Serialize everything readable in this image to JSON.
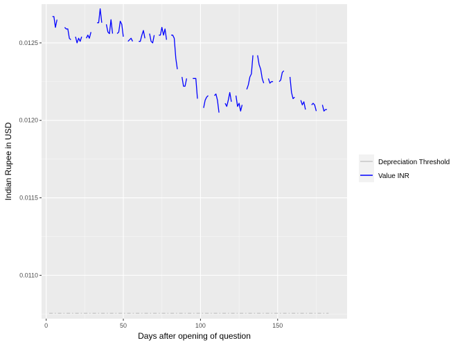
{
  "chart_data": {
    "type": "line",
    "title": "",
    "xlabel": "Days after opening of question",
    "ylabel": "Indian Rupee in USD",
    "xlim": [
      -3,
      195
    ],
    "ylim": [
      0.01072,
      0.01275
    ],
    "x_ticks": [
      0,
      50,
      100,
      150
    ],
    "x_tick_labels": [
      "0",
      "50",
      "100",
      "150"
    ],
    "y_ticks": [
      0.011,
      0.0115,
      0.012,
      0.0125
    ],
    "y_tick_labels": [
      "0.0110",
      "0.0115",
      "0.0120",
      "0.0125"
    ],
    "grid": true,
    "legend_position": "right",
    "series": [
      {
        "name": "Depreciation Threshold",
        "color": "#bebebe",
        "style": "dashed",
        "x": [
          2,
          183
        ],
        "y": [
          0.010755,
          0.010755
        ]
      },
      {
        "name": "Value INR",
        "color": "#0000ff",
        "style": "solid",
        "segments": [
          {
            "x": [
              4,
              5,
              6,
              7
            ],
            "y": [
              0.01267,
              0.01267,
              0.0126,
              0.01265
            ]
          },
          {
            "x": [
              12,
              13,
              14,
              15,
              16
            ],
            "y": [
              0.0126,
              0.01259,
              0.01259,
              0.01253,
              0.01252
            ]
          },
          {
            "x": [
              19,
              20,
              21,
              22,
              23
            ],
            "y": [
              0.01254,
              0.0125,
              0.01253,
              0.01251,
              0.01254
            ]
          },
          {
            "x": [
              26,
              27,
              28,
              29
            ],
            "y": [
              0.01253,
              0.01255,
              0.01253,
              0.01257
            ]
          },
          {
            "x": [
              33,
              34,
              35,
              36
            ],
            "y": [
              0.01263,
              0.01263,
              0.01272,
              0.01263
            ]
          },
          {
            "x": [
              39,
              40,
              41,
              42,
              43
            ],
            "y": [
              0.01262,
              0.01257,
              0.01256,
              0.01265,
              0.01256
            ]
          },
          {
            "x": [
              46,
              47,
              48,
              49,
              50
            ],
            "y": [
              0.01256,
              0.01257,
              0.01264,
              0.01262,
              0.01254
            ]
          },
          {
            "x": [
              53,
              54,
              55,
              56
            ],
            "y": [
              0.01251,
              0.01252,
              0.01253,
              0.01251
            ]
          },
          {
            "x": [
              60,
              61,
              62,
              63,
              64
            ],
            "y": [
              0.01251,
              0.01251,
              0.01255,
              0.01258,
              0.01253
            ]
          },
          {
            "x": [
              67,
              68,
              69,
              70
            ],
            "y": [
              0.01256,
              0.01251,
              0.0125,
              0.01255
            ]
          },
          {
            "x": [
              73,
              74,
              75,
              76,
              77,
              78
            ],
            "y": [
              0.01255,
              0.01255,
              0.0126,
              0.01255,
              0.01259,
              0.01252
            ]
          },
          {
            "x": [
              81,
              82,
              83,
              84,
              85
            ],
            "y": [
              0.01255,
              0.01255,
              0.01253,
              0.0124,
              0.01233
            ]
          },
          {
            "x": [
              88,
              89,
              90,
              91
            ],
            "y": [
              0.01228,
              0.01222,
              0.01222,
              0.01227
            ]
          },
          {
            "x": [
              95,
              96,
              97,
              98
            ],
            "y": [
              0.01227,
              0.01227,
              0.01227,
              0.01214
            ]
          },
          {
            "x": [
              102,
              103,
              104,
              105
            ],
            "y": [
              0.01208,
              0.01213,
              0.01215,
              0.01216
            ]
          },
          {
            "x": [
              109,
              110,
              111,
              112
            ],
            "y": [
              0.01216,
              0.01217,
              0.01213,
              0.01205
            ]
          },
          {
            "x": [
              116,
              117,
              118,
              119,
              120
            ],
            "y": [
              0.01211,
              0.01209,
              0.01213,
              0.01218,
              0.01212
            ]
          },
          {
            "x": [
              123,
              124,
              125,
              126,
              127
            ],
            "y": [
              0.01216,
              0.01209,
              0.01211,
              0.01206,
              0.0121
            ]
          },
          {
            "x": [
              130,
              131,
              132,
              133,
              134
            ],
            "y": [
              0.0122,
              0.01223,
              0.01228,
              0.0123,
              0.01242
            ]
          },
          {
            "x": [
              137,
              138,
              139,
              140,
              141
            ],
            "y": [
              0.01242,
              0.01236,
              0.01233,
              0.01227,
              0.01224
            ]
          },
          {
            "x": [
              144,
              145,
              146,
              147
            ],
            "y": [
              0.01227,
              0.01224,
              0.01225,
              0.01225
            ]
          },
          {
            "x": [
              151,
              152,
              153,
              154
            ],
            "y": [
              0.01225,
              0.01226,
              0.01231,
              0.01232
            ]
          },
          {
            "x": [
              158,
              159,
              160,
              161
            ],
            "y": [
              0.01228,
              0.01218,
              0.01214,
              0.01215
            ]
          },
          {
            "x": [
              165,
              166,
              167,
              168
            ],
            "y": [
              0.01213,
              0.0121,
              0.01212,
              0.01207
            ]
          },
          {
            "x": [
              172,
              173,
              174,
              175
            ],
            "y": [
              0.0121,
              0.01211,
              0.0121,
              0.01206
            ]
          },
          {
            "x": [
              179,
              180,
              181,
              182
            ],
            "y": [
              0.0121,
              0.01206,
              0.01207,
              0.01207
            ]
          }
        ]
      }
    ]
  }
}
